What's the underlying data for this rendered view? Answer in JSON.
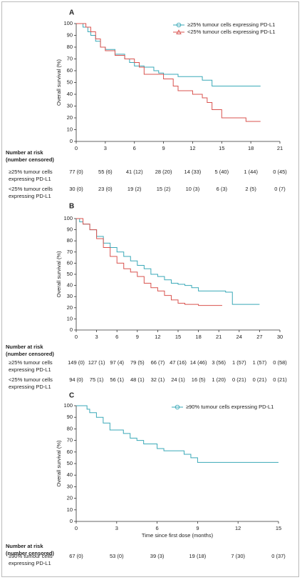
{
  "chart_data": [
    {
      "type": "line",
      "panel": "A",
      "step": true,
      "xlim": [
        0,
        21
      ],
      "xticks": [
        0,
        3,
        6,
        9,
        12,
        15,
        18,
        21
      ],
      "ylim": [
        0,
        100
      ],
      "yticks": [
        0,
        10,
        20,
        30,
        40,
        50,
        60,
        70,
        80,
        90,
        100
      ],
      "ylabel": "Overall survival (%)",
      "legend": "upper right",
      "series": [
        {
          "name": "≥25% tumour cells expressing PD-L1",
          "color": "#3aa9b8",
          "x": [
            0,
            0.7,
            1.2,
            1.5,
            2,
            2.5,
            3,
            4,
            5,
            5.5,
            6,
            7,
            8,
            8.5,
            9,
            10,
            10.5,
            11,
            12,
            13,
            14,
            15,
            16,
            17,
            19
          ],
          "values": [
            100,
            97,
            93,
            90,
            85,
            80,
            78,
            74,
            70,
            67,
            64,
            63,
            60,
            58,
            57,
            57,
            55,
            55,
            55,
            52,
            47,
            47,
            47,
            47,
            47
          ]
        },
        {
          "name": "<25% tumour cells expressing PD-L1",
          "color": "#d9534f",
          "x": [
            0,
            1,
            1.5,
            2,
            2.5,
            3,
            4,
            5,
            6,
            6.5,
            7,
            8,
            9,
            10,
            10.5,
            11,
            12,
            13,
            13.5,
            14,
            15,
            16,
            17,
            17.5,
            19
          ],
          "values": [
            100,
            97,
            93,
            87,
            80,
            77,
            73,
            70,
            67,
            63,
            57,
            57,
            53,
            47,
            43,
            43,
            40,
            37,
            33,
            27,
            20,
            20,
            20,
            17,
            17
          ]
        }
      ],
      "risk_table": {
        "title": [
          "Number at risk",
          "(number censored)"
        ],
        "rows": [
          {
            "label": [
              "≥25% tumour cells",
              "expressing PD-L1"
            ],
            "values": [
              "77 (0)",
              "55 (6)",
              "41 (12)",
              "28 (20)",
              "14 (33)",
              "5 (40)",
              "1 (44)",
              "0 (45)"
            ]
          },
          {
            "label": [
              "<25% tumour cells",
              "expressing PD-L1"
            ],
            "values": [
              "30 (0)",
              "23 (0)",
              "19 (2)",
              "15 (2)",
              "10 (3)",
              "6 (3)",
              "2 (5)",
              "0 (7)"
            ]
          }
        ]
      }
    },
    {
      "type": "line",
      "panel": "B",
      "step": true,
      "xlim": [
        0,
        30
      ],
      "xticks": [
        0,
        3,
        6,
        9,
        12,
        15,
        18,
        21,
        24,
        27,
        30
      ],
      "ylim": [
        0,
        100
      ],
      "yticks": [
        0,
        10,
        20,
        30,
        40,
        50,
        60,
        70,
        80,
        90,
        100
      ],
      "ylabel": "Overall survival (%)",
      "series": [
        {
          "name": "≥25% tumour cells expressing PD-L1",
          "color": "#3aa9b8",
          "x": [
            0,
            0.5,
            1,
            2,
            3,
            4,
            5,
            6,
            7,
            8,
            9,
            10,
            11,
            12,
            13,
            14,
            15,
            16,
            17,
            18,
            20,
            22,
            23,
            25,
            27
          ],
          "values": [
            100,
            97,
            95,
            90,
            84,
            78,
            74,
            70,
            66,
            62,
            58,
            55,
            50,
            48,
            45,
            42,
            41,
            40,
            38,
            35,
            35,
            34,
            23,
            23,
            23
          ]
        },
        {
          "name": "<25% tumour cells expressing PD-L1",
          "color": "#d9534f",
          "x": [
            0,
            1,
            2,
            3,
            4,
            5,
            6,
            7,
            8,
            9,
            10,
            11,
            12,
            13,
            14,
            15,
            16,
            18,
            20,
            21.5
          ],
          "values": [
            100,
            95,
            90,
            82,
            74,
            66,
            60,
            55,
            52,
            48,
            42,
            38,
            35,
            31,
            27,
            24,
            23,
            22,
            22,
            22
          ]
        }
      ],
      "risk_table": {
        "title": [
          "Number at risk",
          "(number censored)"
        ],
        "rows": [
          {
            "label": [
              "≥25% tumour cells",
              "expressing PD-L1"
            ],
            "values": [
              "149 (0)",
              "127 (1)",
              "97 (4)",
              "79 (5)",
              "66 (7)",
              "47 (16)",
              "14 (46)",
              "3 (56)",
              "1 (57)",
              "1 (57)",
              "0 (58)"
            ]
          },
          {
            "label": [
              "<25% tumour cells",
              "expressing PD-L1"
            ],
            "values": [
              "94 (0)",
              "75 (1)",
              "56 (1)",
              "48 (1)",
              "32 (1)",
              "24 (1)",
              "16 (5)",
              "1 (20)",
              "0 (21)",
              "0 (21)",
              "0 (21)"
            ]
          }
        ]
      }
    },
    {
      "type": "line",
      "panel": "C",
      "step": true,
      "xlim": [
        0,
        15
      ],
      "xticks": [
        0,
        3,
        6,
        9,
        12,
        15
      ],
      "ylim": [
        0,
        100
      ],
      "yticks": [
        0,
        10,
        20,
        30,
        40,
        50,
        60,
        70,
        80,
        90,
        100
      ],
      "ylabel": "Overall survival (%)",
      "xlabel": "Time since first dose (months)",
      "legend": "upper right",
      "series": [
        {
          "name": "≥90% tumour cells expressing PD-L1",
          "color": "#3aa9b8",
          "x": [
            0,
            0.8,
            1,
            1.5,
            2,
            2.5,
            3,
            3.5,
            4,
            4.5,
            5,
            5.5,
            6,
            6.5,
            7,
            7.5,
            8,
            8.5,
            9,
            10,
            11,
            12,
            13,
            14,
            15
          ],
          "values": [
            100,
            97,
            94,
            90,
            85,
            79,
            79,
            76,
            72,
            70,
            67,
            67,
            63,
            61,
            61,
            61,
            58,
            55,
            51,
            51,
            51,
            51,
            51,
            51,
            51
          ]
        }
      ],
      "risk_table": {
        "title": [
          "Number at risk",
          "(number censored)"
        ],
        "rows": [
          {
            "label": [
              "≥90% tumour cells",
              "expressing PD-L1"
            ],
            "values": [
              "67 (0)",
              "53 (0)",
              "39 (3)",
              "19 (18)",
              "7 (30)",
              "0 (37)"
            ]
          }
        ]
      }
    }
  ]
}
